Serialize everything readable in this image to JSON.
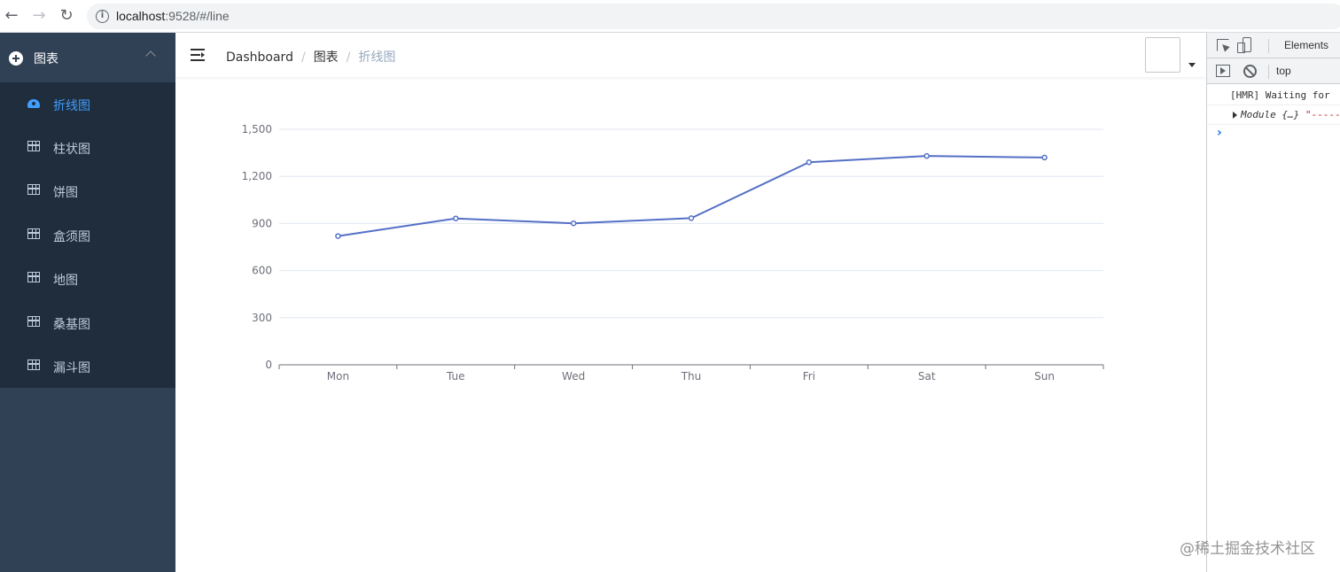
{
  "browser": {
    "url_host": "localhost",
    "url_rest": ":9528/#/line",
    "back_icon": "←",
    "forward_icon": "→",
    "reload_icon": "↻",
    "info_icon": "i"
  },
  "sidebar": {
    "parent_label": "图表",
    "items": [
      {
        "label": "折线图",
        "active": true,
        "icon": "dashboard-icon"
      },
      {
        "label": "柱状图",
        "active": false,
        "icon": "table-icon"
      },
      {
        "label": "饼图",
        "active": false,
        "icon": "table-icon"
      },
      {
        "label": "盒须图",
        "active": false,
        "icon": "table-icon"
      },
      {
        "label": "地图",
        "active": false,
        "icon": "table-icon"
      },
      {
        "label": "桑基图",
        "active": false,
        "icon": "table-icon"
      },
      {
        "label": "漏斗图",
        "active": false,
        "icon": "table-icon"
      }
    ],
    "colors": {
      "bg": "#304156",
      "submenu_bg": "#1f2d3d",
      "active": "#409eff",
      "text": "#bfcbd9"
    }
  },
  "breadcrumb": {
    "items": [
      "Dashboard",
      "图表",
      "折线图"
    ],
    "separator": "/"
  },
  "chart_data": {
    "type": "line",
    "categories": [
      "Mon",
      "Tue",
      "Wed",
      "Thu",
      "Fri",
      "Sat",
      "Sun"
    ],
    "series": [
      {
        "values": [
          820,
          932,
          901,
          934,
          1290,
          1330,
          1320
        ],
        "color": "#5470c6"
      }
    ],
    "ylim": [
      0,
      1500
    ],
    "yticks": [
      0,
      300,
      600,
      900,
      1200,
      1500
    ],
    "ytick_labels": [
      "0",
      "300",
      "600",
      "900",
      "1,200",
      "1,500"
    ],
    "grid": true
  },
  "devtools": {
    "tab_label": "Elements",
    "context_label": "top",
    "console": [
      {
        "text": "[HMR] Waiting for"
      },
      {
        "prefix": "Module {…}",
        "suffix": " \"-----"
      }
    ],
    "prompt": "›"
  },
  "watermark": "@稀土掘金技术社区"
}
